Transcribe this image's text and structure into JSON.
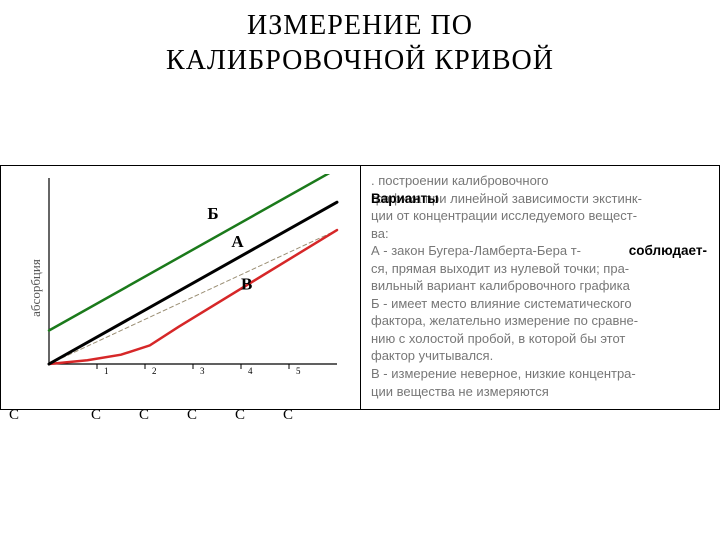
{
  "title_line1": "ИЗМЕРЕНИЕ  ПО",
  "title_line2": "КАЛИБРОВОЧНОЙ  КРИВОЙ",
  "chart": {
    "type": "line",
    "ylabel": "абсорбция",
    "axes": {
      "x_range": [
        0,
        6
      ],
      "y_range": [
        0,
        1.0
      ],
      "x_ticks": [
        1,
        2,
        3,
        4,
        5
      ],
      "x_tick_labels": [
        "1",
        "2",
        "3",
        "4",
        "5"
      ],
      "c_labels": [
        "С",
        "С",
        "С",
        "С",
        "С",
        "С"
      ],
      "axis_color": "#000000",
      "tick_font_size": 9,
      "c_font_size": 15
    },
    "series": {
      "B_green": {
        "label": "Б",
        "color": "#1b7a1b",
        "width": 2.5,
        "points": [
          [
            0,
            0.18
          ],
          [
            6,
            1.05
          ]
        ]
      },
      "A_black": {
        "label": "А",
        "color": "#000000",
        "width": 3.0,
        "points": [
          [
            0,
            0.0
          ],
          [
            6,
            0.87
          ]
        ]
      },
      "V_red": {
        "label": "В",
        "color": "#d62728",
        "width": 2.5,
        "points": [
          [
            0,
            0.0
          ],
          [
            0.8,
            0.02
          ],
          [
            1.5,
            0.05
          ],
          [
            2.1,
            0.1
          ],
          [
            2.7,
            0.2
          ],
          [
            6,
            0.72
          ]
        ]
      },
      "dashed_grey": {
        "label": "",
        "color": "#9b8f75",
        "width": 1,
        "dash": "4,3",
        "points": [
          [
            0,
            0.0
          ],
          [
            6,
            0.72
          ]
        ]
      }
    },
    "series_label_positions": {
      "B_green": {
        "x": 3.3,
        "y": 0.78
      },
      "A_black": {
        "x": 3.8,
        "y": 0.63
      },
      "V_red": {
        "x": 4.0,
        "y": 0.4
      }
    },
    "label_font_size": 17,
    "background_color": "#ffffff"
  },
  "description": {
    "bold_overlay_1": "Варианты",
    "bold_overlay_2": "соблюдает-",
    "bold_overlay_3": "-",
    "lines": [
      ".              построении калибровочного",
      "графика при линейной зависимости экстинк-",
      "ции от концентрации исследуемого вещест-",
      "ва:",
      "А - закон Бугера-Ламберта-Бера              т-",
      "ся, прямая выходит из нулевой точки; пра-",
      "вильный вариант калибровочного графика",
      "Б - имеет место влияние систематического",
      "фактора, желательно измерение по сравне-",
      "нию с холостой пробой, в которой бы этот",
      "фактор учитывался.",
      "В - измерение неверное, низкие концентра-",
      "ции вещества не измеряются"
    ]
  }
}
